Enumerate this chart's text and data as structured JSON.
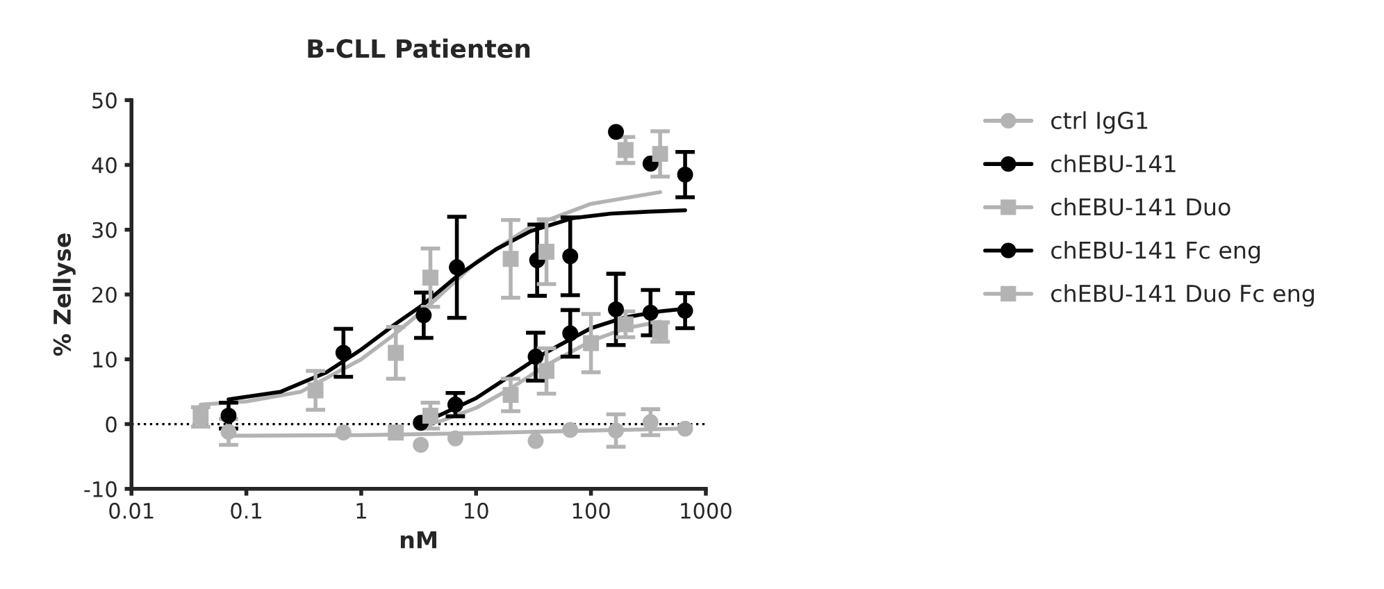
{
  "chart_data": {
    "type": "scatter",
    "title": "B-CLL Patienten",
    "xlabel": "nM",
    "ylabel": "% Zellyse",
    "log": "x",
    "xlim": [
      0.01,
      1000
    ],
    "xticks": [
      0.01,
      0.1,
      1,
      10,
      100,
      1000
    ],
    "ylim": [
      -10,
      50
    ],
    "yticks": [
      -10,
      0,
      10,
      20,
      30,
      40,
      50
    ],
    "grid": false,
    "legend": "right",
    "ref_lines": [
      {
        "axis": "y",
        "value": 0,
        "line_style": "dotted",
        "color": "#000000"
      }
    ],
    "series": [
      {
        "name": "ctrl IgG1",
        "color": "#b3b3b3",
        "marker": "circle",
        "x": [
          0.07,
          0.7,
          3.3,
          6.6,
          33,
          66,
          165,
          330,
          660
        ],
        "values": [
          -1.2,
          -1.3,
          -3.2,
          -2.2,
          -2.6,
          -0.9,
          -1.0,
          0.3,
          -0.7
        ],
        "errors": [
          2,
          null,
          null,
          null,
          null,
          null,
          2.5,
          2,
          null
        ]
      },
      {
        "name": "chEBU-141",
        "color": "#000000",
        "marker": "circle",
        "x": [
          3.3,
          6.6,
          33,
          66,
          165,
          330,
          660
        ],
        "values": [
          0.2,
          3.0,
          10.4,
          14.0,
          17.7,
          17.2,
          17.5
        ],
        "errors": [
          null,
          1.8,
          3.7,
          3.6,
          5.5,
          3.5,
          2.7
        ]
      },
      {
        "name": "chEBU-141 Duo",
        "color": "#b3b3b3",
        "marker": "square",
        "x": [
          2,
          4,
          20,
          41,
          100,
          200,
          400
        ],
        "values": [
          -1.3,
          1.3,
          4.5,
          8.2,
          12.5,
          15.4,
          14.2
        ],
        "errors": [
          null,
          2,
          2.5,
          3.5,
          4.5,
          2,
          1.5
        ]
      },
      {
        "name": "chEBU-141 Fc eng",
        "color": "#000000",
        "marker": "circle",
        "x": [
          0.07,
          0.7,
          3.5,
          6.8,
          34,
          66,
          165,
          330,
          660
        ],
        "values": [
          1.3,
          11.0,
          16.8,
          24.2,
          25.3,
          25.9,
          45.1,
          40.2,
          38.5
        ],
        "errors": [
          2,
          3.7,
          3.5,
          7.8,
          5.5,
          6,
          null,
          null,
          3.5
        ]
      },
      {
        "name": "chEBU-141 Duo Fc eng",
        "color": "#b3b3b3",
        "marker": "square",
        "x": [
          0.04,
          0.4,
          2,
          4,
          20,
          41,
          200,
          400
        ],
        "values": [
          1.1,
          5.2,
          11.0,
          22.6,
          25.5,
          26.6,
          42.3,
          41.7
        ],
        "errors": [
          1.5,
          3,
          4,
          4.5,
          6,
          5,
          2,
          3.5
        ]
      },
      {
        "type": "line",
        "color": "#b3b3b3",
        "marker": "none",
        "x": [
          0.07,
          1,
          10,
          100,
          660
        ],
        "values": [
          -1.8,
          -1.7,
          -1.4,
          -1.0,
          -0.7
        ]
      },
      {
        "type": "line",
        "color": "#b3b3b3",
        "marker": "none",
        "x": [
          3.3,
          5,
          10,
          20,
          40,
          100,
          200,
          400
        ],
        "values": [
          -0.3,
          0.5,
          2.5,
          5.5,
          9,
          12.8,
          14.8,
          15.8
        ]
      },
      {
        "type": "line",
        "color": "#000000",
        "marker": "none",
        "x": [
          3.3,
          5,
          10,
          20,
          40,
          100,
          200,
          400,
          660
        ],
        "values": [
          0.3,
          1.5,
          4,
          7.5,
          11,
          14.8,
          16.5,
          17.4,
          17.8
        ]
      },
      {
        "type": "line",
        "color": "#b3b3b3",
        "marker": "none",
        "x": [
          0.04,
          0.1,
          0.3,
          1,
          2,
          4,
          10,
          30,
          100,
          400
        ],
        "values": [
          3,
          3.5,
          5,
          10,
          14,
          18.5,
          25,
          30.5,
          34,
          35.8
        ]
      },
      {
        "type": "line",
        "color": "#000000",
        "marker": "none",
        "x": [
          0.07,
          0.2,
          0.5,
          1,
          2,
          3.5,
          7,
          15,
          30,
          70,
          150,
          330,
          660
        ],
        "values": [
          3.8,
          5,
          8,
          11.5,
          15.5,
          18.5,
          23,
          27,
          29.8,
          31.8,
          32.5,
          32.8,
          33
        ]
      }
    ]
  }
}
